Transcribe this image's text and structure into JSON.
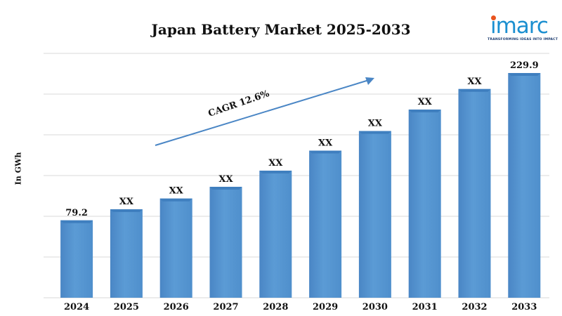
{
  "title": "Japan Battery Market 2025-2033",
  "logo": {
    "name": "imarc",
    "tagline": "TRANSFORMING IDEAS INTO IMPACT",
    "brand_color": "#1b8fd0",
    "dot_color": "#e9541f"
  },
  "annotation": "CAGR 12.6%",
  "colors": {
    "bar": "#5b9bd5",
    "bar_top": "#3f7fbf",
    "arrow": "#4a86c5",
    "grid": "#d9d9d9"
  },
  "chart_data": {
    "type": "bar",
    "title": "Japan Battery Market 2025-2033",
    "xlabel": "",
    "ylabel": "In GWh",
    "categories": [
      "2024",
      "2025",
      "2026",
      "2027",
      "2028",
      "2029",
      "2030",
      "2031",
      "2032",
      "2033"
    ],
    "values": [
      79.2,
      90.5,
      101.5,
      113.5,
      130,
      150.5,
      170.5,
      192.5,
      213.5,
      229.9
    ],
    "data_labels": [
      "79.2",
      "XX",
      "XX",
      "XX",
      "XX",
      "XX",
      "XX",
      "XX",
      "XX",
      "229.9"
    ],
    "ylim": [
      0,
      250
    ],
    "grid": true,
    "legend": "none"
  }
}
